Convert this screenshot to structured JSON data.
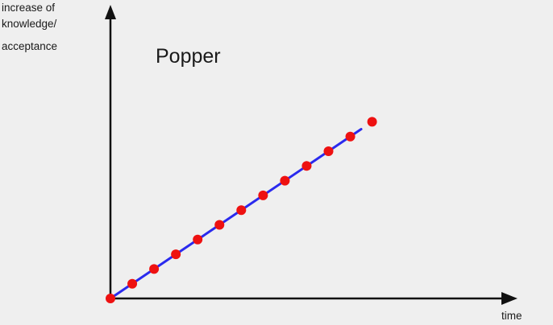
{
  "title": "Popper",
  "y_axis_label_lines": [
    "increase of",
    "knowledge/",
    "acceptance"
  ],
  "x_axis_label": "time",
  "colors": {
    "line": "#2a2aee",
    "points": "#ee1111",
    "axes": "#111111",
    "background": "#efefef"
  },
  "chart_data": {
    "type": "line",
    "title": "Popper",
    "xlabel": "time",
    "ylabel": "increase of knowledge/ acceptance",
    "series": [
      {
        "style": "straight line",
        "x": [
          0,
          11.5
        ],
        "y": [
          0,
          11.5
        ]
      },
      {
        "style": "points",
        "x": [
          0,
          1,
          2,
          3,
          4,
          5,
          6,
          7,
          8,
          9,
          10,
          11,
          12
        ],
        "y": [
          0,
          1,
          2,
          3,
          4,
          5,
          6,
          7,
          8,
          9,
          10,
          11,
          12
        ]
      }
    ],
    "grid": false
  }
}
